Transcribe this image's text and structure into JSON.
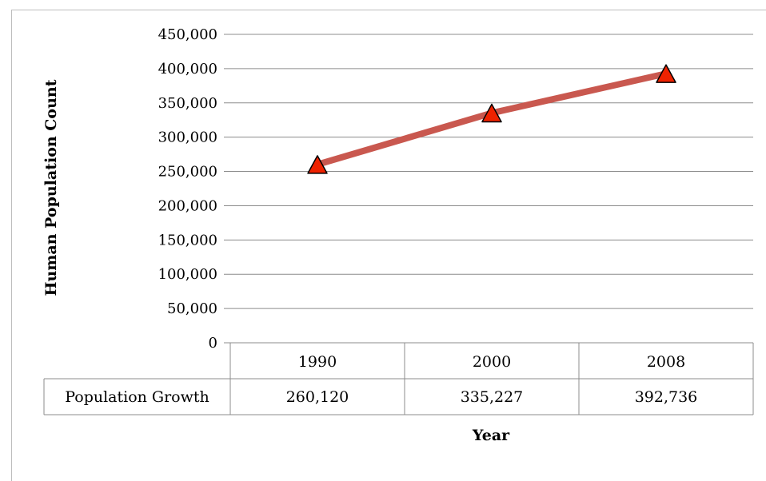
{
  "chart_data": {
    "type": "line",
    "categories": [
      "1990",
      "2000",
      "2008"
    ],
    "series": [
      {
        "name": "Population Growth",
        "values": [
          260120,
          335227,
          392736
        ],
        "value_labels": [
          "260,120",
          "335,227",
          "392,736"
        ]
      }
    ],
    "xlabel": "Year",
    "ylabel": "Human Population Count",
    "ylim": [
      0,
      450000
    ],
    "yticks": [
      0,
      50000,
      100000,
      150000,
      200000,
      250000,
      300000,
      350000,
      400000,
      450000
    ],
    "ytick_labels": [
      "0",
      "50,000",
      "100,000",
      "150,000",
      "200,000",
      "250,000",
      "300,000",
      "350,000",
      "400,000",
      "450,000"
    ],
    "grid": true,
    "data_table": true,
    "line_color": "#c9584f",
    "marker": "triangle",
    "marker_color": "#ee2200"
  }
}
